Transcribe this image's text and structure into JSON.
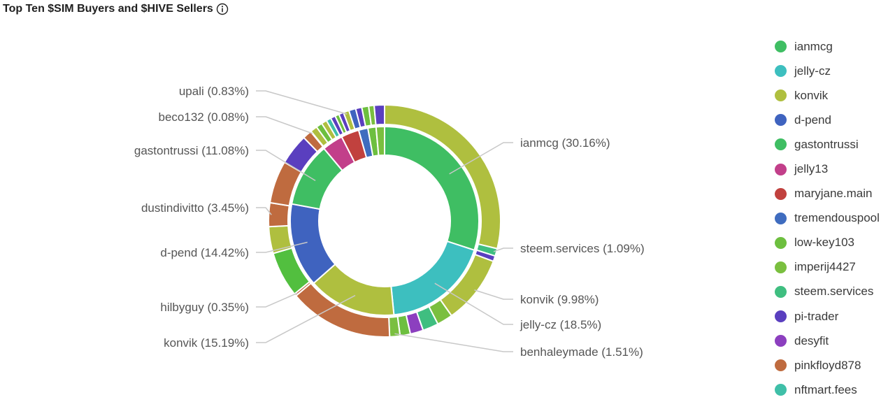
{
  "title": "Top Ten $SIM Buyers and $HIVE Sellers",
  "icons": {
    "info": "info-circle-icon"
  },
  "legend": [
    {
      "label": "ianmcg",
      "color": "#3fbe63"
    },
    {
      "label": "jelly-cz",
      "color": "#3dbfbf"
    },
    {
      "label": "konvik",
      "color": "#afbf3f"
    },
    {
      "label": "d-pend",
      "color": "#3f63bf"
    },
    {
      "label": "gastontrussi",
      "color": "#3fbe63"
    },
    {
      "label": "jelly13",
      "color": "#c23f8a"
    },
    {
      "label": "maryjane.main",
      "color": "#c1413e"
    },
    {
      "label": "tremendouspool",
      "color": "#3f6cbf"
    },
    {
      "label": "low-key103",
      "color": "#6dbf3f"
    },
    {
      "label": "imperij4427",
      "color": "#7abf3f"
    },
    {
      "label": "steem.services",
      "color": "#3fbe80"
    },
    {
      "label": "pi-trader",
      "color": "#5a3fbf"
    },
    {
      "label": "desyfit",
      "color": "#8c3fbf"
    },
    {
      "label": "pinkfloyd878",
      "color": "#bf6b3f"
    },
    {
      "label": "nftmart.fees",
      "color": "#3fbfa8"
    }
  ],
  "chart_data": {
    "type": "pie",
    "variant": "nested donut",
    "inner_ring": [
      {
        "name": "ianmcg",
        "value": 30.16,
        "color": "#3fbe63"
      },
      {
        "name": "jelly-cz",
        "value": 18.5,
        "color": "#3dbfbf"
      },
      {
        "name": "konvik",
        "value": 15.19,
        "color": "#afbf3f"
      },
      {
        "name": "d-pend",
        "value": 14.42,
        "color": "#3f63bf"
      },
      {
        "name": "gastontrussi",
        "value": 11.08,
        "color": "#3fbe63"
      },
      {
        "name": "jelly13",
        "value": 3.6,
        "color": "#c23f8a"
      },
      {
        "name": "maryjane.main",
        "value": 3.1,
        "color": "#c1413e"
      },
      {
        "name": "tremendouspool",
        "value": 1.6,
        "color": "#3f6cbf"
      },
      {
        "name": "low-key103",
        "value": 1.4,
        "color": "#6dbf3f"
      },
      {
        "name": "imperij4427",
        "value": 1.45,
        "color": "#7abf3f"
      }
    ],
    "outer_ring": [
      {
        "name": "konvik",
        "value": 30.16,
        "color": "#afbf3f"
      },
      {
        "name": "steem.services",
        "value": 1.09,
        "color": "#3fbe80"
      },
      {
        "name": "pi-trader",
        "value": 0.8,
        "color": "#5a3fbf"
      },
      {
        "name": "konvik",
        "value": 9.98,
        "color": "#afbf3f"
      },
      {
        "name": "imperij4427",
        "value": 2.3,
        "color": "#7abf3f"
      },
      {
        "name": "steem.services",
        "value": 2.3,
        "color": "#3fbe80"
      },
      {
        "name": "desyfit",
        "value": 1.9,
        "color": "#8c3fbf"
      },
      {
        "name": "low-key103",
        "value": 1.5,
        "color": "#6dbf3f"
      },
      {
        "name": "benhaleymade",
        "value": 1.51,
        "color": "#7abf3f"
      },
      {
        "name": "pinkfloyd878",
        "value": 15.19,
        "color": "#bf6b3f"
      },
      {
        "name": "hilbyguy",
        "value": 0.35,
        "color": "#bf6b3f"
      },
      {
        "name": "low-key103",
        "value": 6.6,
        "color": "#52bf3f"
      },
      {
        "name": "konvik",
        "value": 3.9,
        "color": "#afbf3f"
      },
      {
        "name": "dustindivitto",
        "value": 3.45,
        "color": "#bf6b3f"
      },
      {
        "name": "pinkfloyd878",
        "value": 6.2,
        "color": "#bf6b3f"
      },
      {
        "name": "pi-trader",
        "value": 4.5,
        "color": "#5a3fbf"
      },
      {
        "name": "pinkfloyd878",
        "value": 1.3,
        "color": "#bf6b3f"
      },
      {
        "name": "beco132",
        "value": 0.08,
        "color": "#7abf3f"
      },
      {
        "name": "konvik",
        "value": 1.0,
        "color": "#afbf3f"
      },
      {
        "name": "low-key103",
        "value": 0.9,
        "color": "#6dbf3f"
      },
      {
        "name": "konvik",
        "value": 0.8,
        "color": "#afbf3f"
      },
      {
        "name": "nftmart.fees",
        "value": 0.7,
        "color": "#3fbfa8"
      },
      {
        "name": "pi-trader",
        "value": 0.7,
        "color": "#5a3fbf"
      },
      {
        "name": "low-key103",
        "value": 0.6,
        "color": "#6dbf3f"
      },
      {
        "name": "pi-trader",
        "value": 0.7,
        "color": "#5a3fbf"
      },
      {
        "name": "upali",
        "value": 0.83,
        "color": "#afbf3f"
      },
      {
        "name": "d-pend",
        "value": 1.0,
        "color": "#3f63bf"
      },
      {
        "name": "pi-trader",
        "value": 0.9,
        "color": "#5a3fbf"
      },
      {
        "name": "low-key103",
        "value": 1.0,
        "color": "#6dbf3f"
      },
      {
        "name": "low-key103",
        "value": 0.8,
        "color": "#7abf3f"
      },
      {
        "name": "pi-trader",
        "value": 1.5,
        "color": "#5a3fbf"
      }
    ],
    "labels": [
      {
        "text": "ianmcg (30.16%)",
        "ring": "inner",
        "index": 0,
        "side": "right"
      },
      {
        "text": "steem.services (1.09%)",
        "ring": "outer",
        "index": 1,
        "side": "right"
      },
      {
        "text": "konvik (9.98%)",
        "ring": "outer",
        "index": 3,
        "side": "right"
      },
      {
        "text": "jelly-cz (18.5%)",
        "ring": "inner",
        "index": 1,
        "side": "right"
      },
      {
        "text": "benhaleymade (1.51%)",
        "ring": "outer",
        "index": 8,
        "side": "right"
      },
      {
        "text": "konvik (15.19%)",
        "ring": "inner",
        "index": 2,
        "side": "left"
      },
      {
        "text": "hilbyguy (0.35%)",
        "ring": "outer",
        "index": 10,
        "side": "left"
      },
      {
        "text": "d-pend (14.42%)",
        "ring": "inner",
        "index": 3,
        "side": "left"
      },
      {
        "text": "dustindivitto (3.45%)",
        "ring": "outer",
        "index": 13,
        "side": "left"
      },
      {
        "text": "gastontrussi (11.08%)",
        "ring": "inner",
        "index": 4,
        "side": "left"
      },
      {
        "text": "beco132 (0.08%)",
        "ring": "outer",
        "index": 17,
        "side": "left"
      },
      {
        "text": "upali (0.83%)",
        "ring": "outer",
        "index": 25,
        "side": "left"
      }
    ]
  }
}
